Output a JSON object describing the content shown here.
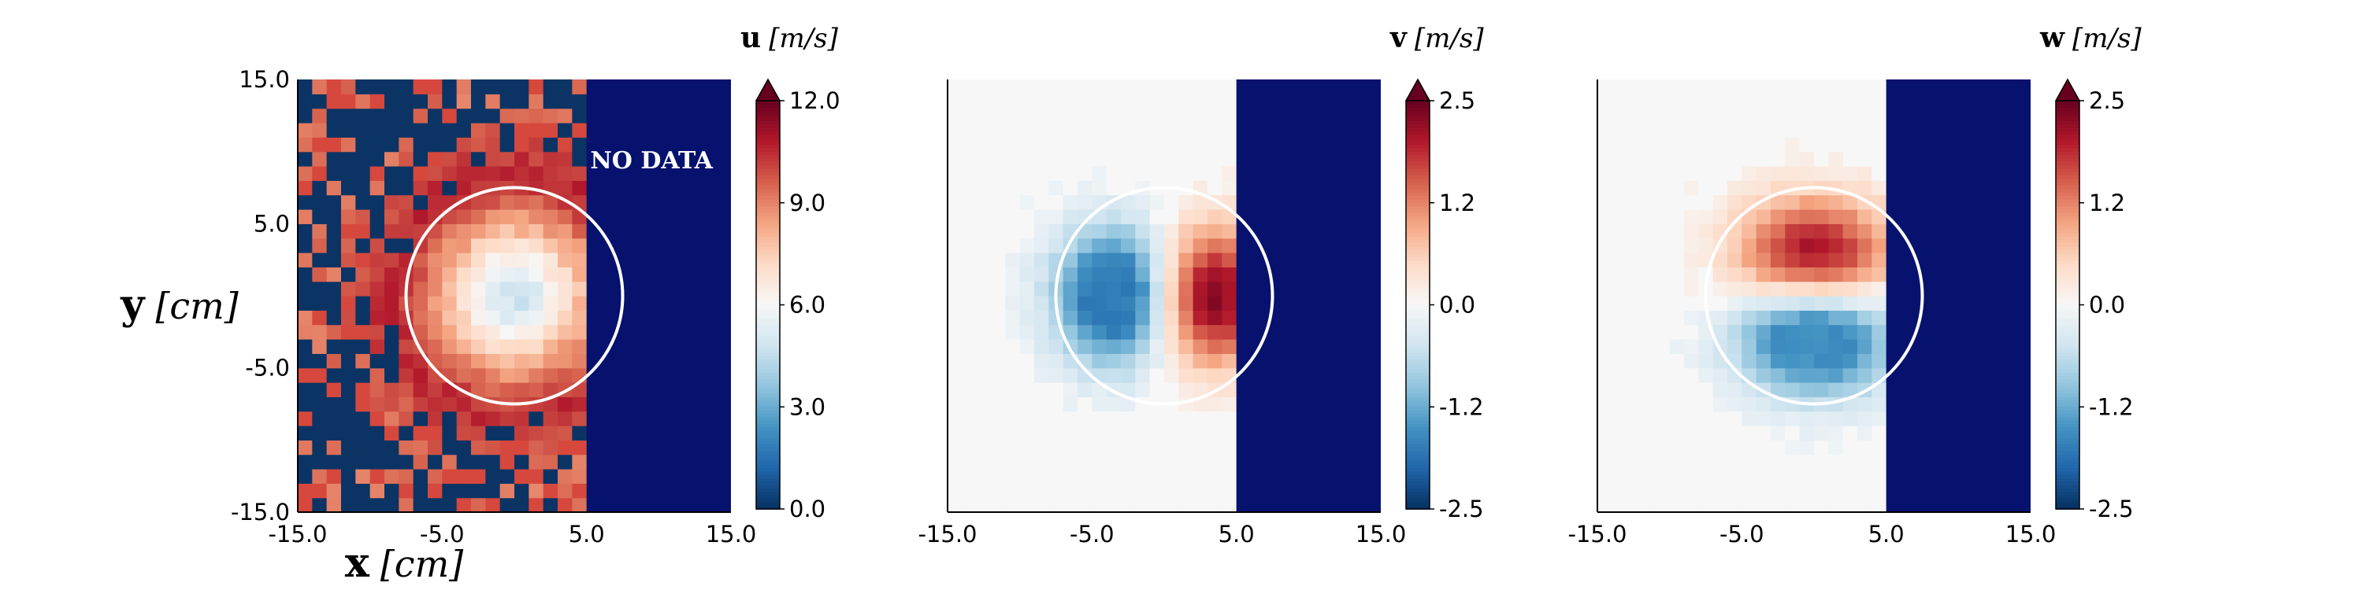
{
  "chart_data": [
    {
      "type": "heatmap",
      "field": "u",
      "colorbar_symbol": "u",
      "colorbar_unit": "[m/s]",
      "colorbar_ticks": [
        "0.0",
        "3.0",
        "6.0",
        "9.0",
        "12.0"
      ],
      "vmin": 0.0,
      "vmax": 12.0,
      "colormap": "RdBu_r",
      "xlim": [
        -15.0,
        15.0
      ],
      "ylim": [
        -15.0,
        15.0
      ],
      "xticks": [
        "-15.0",
        "-5.0",
        "5.0",
        "15.0"
      ],
      "yticks": [
        "-15.0",
        "-5.0",
        "5.0",
        "15.0"
      ],
      "xlabel_symbol": "x",
      "xlabel_unit": "[cm]",
      "ylabel_symbol": "y",
      "ylabel_unit": "[cm]",
      "annotation": "NO DATA",
      "data_xrange": [
        -15.0,
        5.0
      ],
      "nodata_xrange": [
        5.0,
        15.0
      ],
      "circle_center": [
        0.0,
        0.0
      ],
      "circle_radius": 7.5,
      "field_model": "jet_axial"
    },
    {
      "type": "heatmap",
      "field": "v",
      "colorbar_symbol": "v",
      "colorbar_unit": "[m/s]",
      "colorbar_ticks": [
        "-2.5",
        "-1.2",
        "0.0",
        "1.2",
        "2.5"
      ],
      "vmin": -2.5,
      "vmax": 2.5,
      "colormap": "RdBu_r",
      "xlim": [
        -15.0,
        15.0
      ],
      "ylim": [
        -15.0,
        15.0
      ],
      "xticks": [
        "-15.0",
        "-5.0",
        "5.0",
        "15.0"
      ],
      "data_xrange": [
        -15.0,
        5.0
      ],
      "nodata_xrange": [
        5.0,
        15.0
      ],
      "circle_center": [
        0.0,
        0.0
      ],
      "circle_radius": 7.5,
      "field_model": "dipole_x"
    },
    {
      "type": "heatmap",
      "field": "w",
      "colorbar_symbol": "w",
      "colorbar_unit": "[m/s]",
      "colorbar_ticks": [
        "-2.5",
        "-1.2",
        "0.0",
        "1.2",
        "2.5"
      ],
      "vmin": -2.5,
      "vmax": 2.5,
      "colormap": "RdBu_r",
      "xlim": [
        -15.0,
        15.0
      ],
      "ylim": [
        -15.0,
        15.0
      ],
      "xticks": [
        "-15.0",
        "-5.0",
        "5.0",
        "15.0"
      ],
      "data_xrange": [
        -15.0,
        5.0
      ],
      "nodata_xrange": [
        5.0,
        15.0
      ],
      "circle_center": [
        0.0,
        0.0
      ],
      "circle_radius": 7.5,
      "field_model": "dipole_y"
    }
  ],
  "colors": {
    "nodata": "#06126e",
    "circle": "#ffffff",
    "below_range": "#0b3465",
    "above_range": "#d6483d"
  }
}
